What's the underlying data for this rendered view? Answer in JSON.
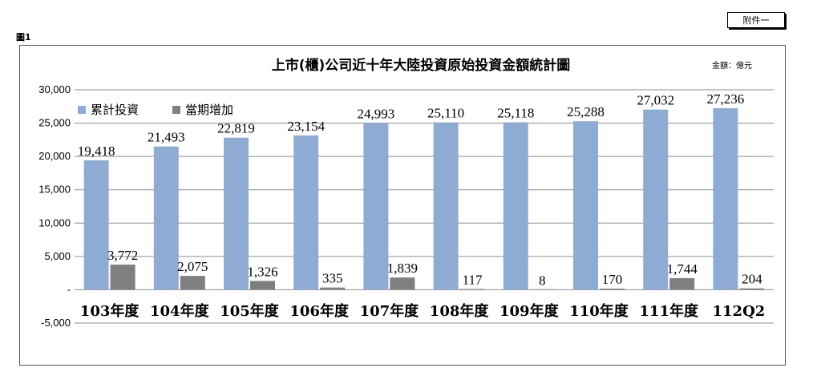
{
  "attachment_tag": "附件一",
  "figure_label": "圖1",
  "chart_data": {
    "type": "bar",
    "title": "上市(櫃)公司近十年大陸投資原始投資金額統計圖",
    "unit_note": "金額：億元",
    "categories": [
      "103年度",
      "104年度",
      "105年度",
      "106年度",
      "107年度",
      "108年度",
      "109年度",
      "110年度",
      "111年度",
      "112Q2"
    ],
    "series": [
      {
        "name": "累計投資",
        "color": "#8EACD3",
        "values": [
          19418,
          21493,
          22819,
          23154,
          24993,
          25110,
          25118,
          25288,
          27032,
          27236
        ],
        "labels": [
          "19,418",
          "21,493",
          "22,819",
          "23,154",
          "24,993",
          "25,110",
          "25,118",
          "25,288",
          "27,032",
          "27,236"
        ]
      },
      {
        "name": "當期增加",
        "color": "#7F7F7F",
        "values": [
          3772,
          2075,
          1326,
          335,
          1839,
          117,
          8,
          170,
          1744,
          204
        ],
        "labels": [
          "3,772",
          "2,075",
          "1,326",
          "335",
          "1,839",
          "117",
          "8",
          "170",
          "1,744",
          "204"
        ]
      }
    ],
    "ylim": [
      -5000,
      30000
    ],
    "yticks": [
      30000,
      25000,
      20000,
      15000,
      10000,
      5000,
      0,
      -5000
    ],
    "ytick_labels": [
      "30,000",
      "25,000",
      "20,000",
      "15,000",
      "10,000",
      "5,000",
      "-",
      "-5,000"
    ],
    "grid": true,
    "legend_position": "top-left"
  }
}
